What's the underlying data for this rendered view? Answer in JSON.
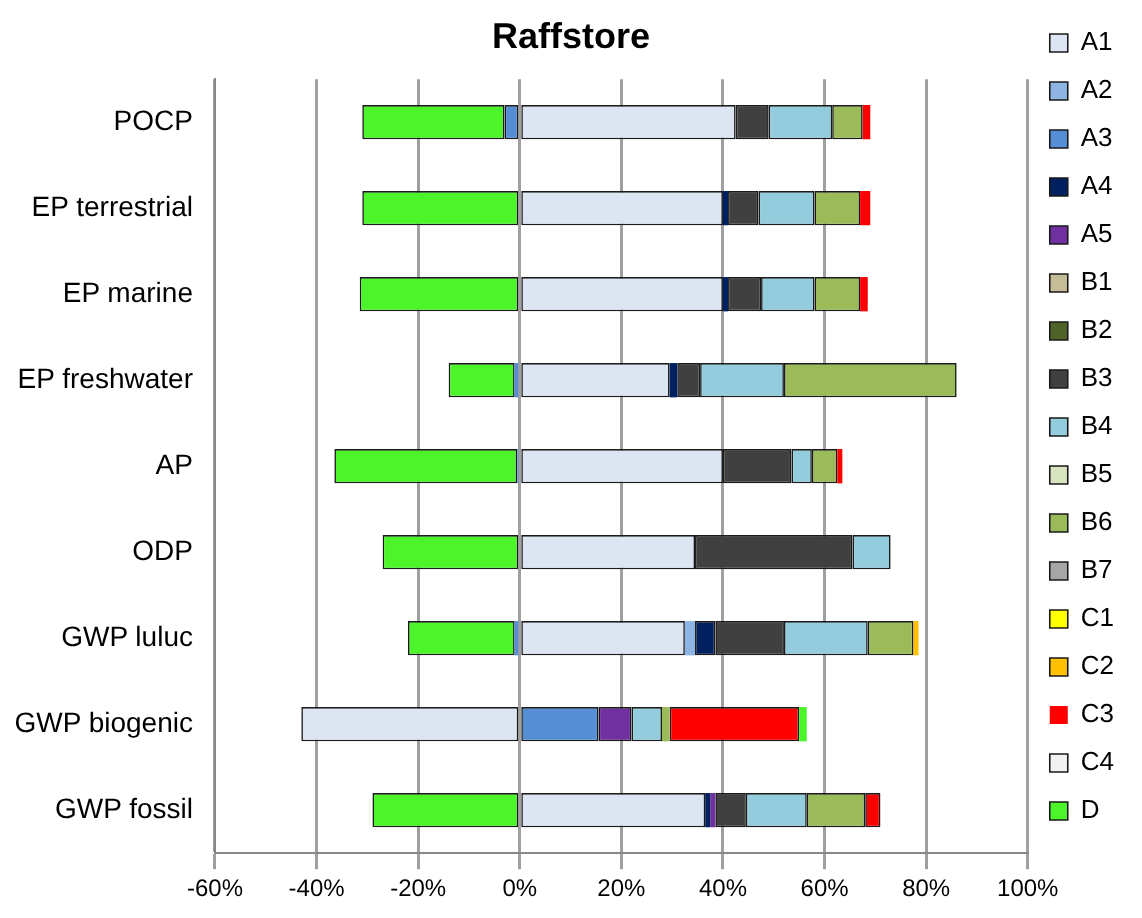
{
  "chart_data": {
    "type": "bar",
    "orientation": "horizontal",
    "stacked": true,
    "title": "Raffstore",
    "categories": [
      "POCP",
      "EP terrestrial",
      "EP marine",
      "EP freshwater",
      "AP",
      "ODP",
      "GWP luluc",
      "GWP biogenic",
      "GWP fossil"
    ],
    "series": [
      {
        "name": "A1",
        "color": "#dce6f2",
        "values": [
          42.5,
          40,
          40,
          29.5,
          40,
          34.5,
          32.5,
          -43,
          36.5
        ]
      },
      {
        "name": "A2",
        "color": "#8db4e2",
        "values": [
          null,
          null,
          null,
          null,
          null,
          null,
          2,
          null,
          null
        ]
      },
      {
        "name": "A3",
        "color": "#558ed5",
        "values": [
          -3,
          null,
          null,
          -1,
          -0.5,
          null,
          -1,
          15.5,
          null
        ]
      },
      {
        "name": "A4",
        "color": "#002060",
        "values": [
          null,
          1,
          1,
          1.5,
          null,
          null,
          4,
          null,
          1
        ]
      },
      {
        "name": "A5",
        "color": "#7030a0",
        "values": [
          null,
          null,
          null,
          null,
          null,
          null,
          null,
          6.5,
          1
        ]
      },
      {
        "name": "B1",
        "color": "#c4bd97",
        "values": [
          null,
          null,
          null,
          null,
          null,
          null,
          null,
          null,
          null
        ]
      },
      {
        "name": "B2",
        "color": "#4f6228",
        "values": [
          null,
          null,
          null,
          null,
          null,
          null,
          null,
          null,
          null
        ]
      },
      {
        "name": "B3",
        "color": "#404040",
        "values": [
          6.5,
          6,
          6.5,
          4.5,
          13.5,
          31,
          13.5,
          null,
          6
        ]
      },
      {
        "name": "B4",
        "color": "#93cddd",
        "values": [
          12.5,
          11,
          10.5,
          16.5,
          4,
          7.5,
          16.5,
          6,
          12
        ]
      },
      {
        "name": "B5",
        "color": "#d7e4bd",
        "values": [
          null,
          null,
          null,
          null,
          null,
          null,
          null,
          null,
          null
        ]
      },
      {
        "name": "B6",
        "color": "#9bbb59",
        "values": [
          6,
          9,
          9,
          34,
          5,
          null,
          9,
          1.5,
          11.5
        ]
      },
      {
        "name": "B7",
        "color": "#a6a6a6",
        "values": [
          null,
          null,
          null,
          null,
          null,
          null,
          null,
          null,
          null
        ]
      },
      {
        "name": "C1",
        "color": "#ffff00",
        "values": [
          null,
          null,
          null,
          null,
          null,
          null,
          null,
          null,
          null
        ]
      },
      {
        "name": "C2",
        "color": "#ffc000",
        "values": [
          null,
          null,
          null,
          null,
          null,
          null,
          1,
          null,
          null
        ]
      },
      {
        "name": "C3",
        "color": "#ff0000",
        "values": [
          1.5,
          2,
          1.5,
          null,
          1,
          null,
          null,
          25.5,
          3
        ]
      },
      {
        "name": "C4",
        "color": "#f2f2f2",
        "values": [
          null,
          null,
          null,
          null,
          null,
          null,
          null,
          null,
          null
        ]
      },
      {
        "name": "D",
        "color": "#4cf52a",
        "values": [
          -28,
          -31,
          -31.5,
          -13,
          -36,
          -27,
          -21,
          1.5,
          -29
        ]
      }
    ],
    "xlim": [
      -60,
      100
    ],
    "xticks": [
      {
        "value": -60,
        "label": "-60%"
      },
      {
        "value": -40,
        "label": "-40%"
      },
      {
        "value": -20,
        "label": "-20%"
      },
      {
        "value": 0,
        "label": "0%"
      },
      {
        "value": 20,
        "label": "20%"
      },
      {
        "value": 40,
        "label": "40%"
      },
      {
        "value": 60,
        "label": "60%"
      },
      {
        "value": 80,
        "label": "80%"
      },
      {
        "value": 100,
        "label": "100%"
      }
    ],
    "grid": "x",
    "legend": "right"
  }
}
